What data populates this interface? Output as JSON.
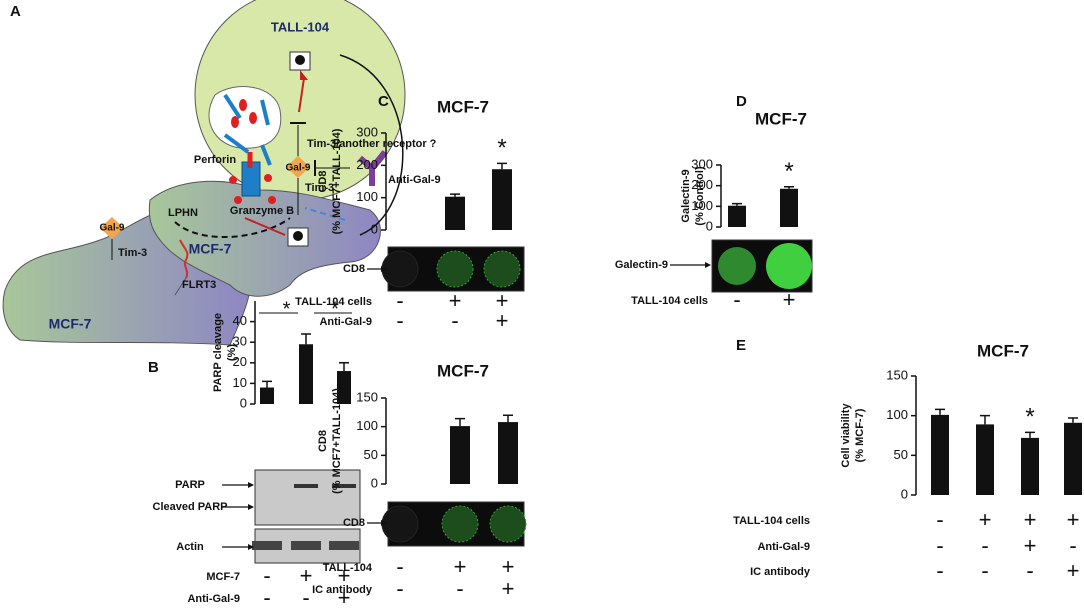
{
  "panel_labels": [
    "A",
    "B",
    "C",
    "D",
    "E"
  ],
  "diagram": {
    "labels": [
      "TALL-104",
      "Perforin",
      "Gal-9",
      "Tim-3/another receptor ?",
      "Anti-Gal-9",
      "Tim-3",
      "Granzyme B",
      "LPHN",
      "MCF-7",
      "Gal-9",
      "Tim-3",
      "FLRT3",
      "MCF-7"
    ]
  },
  "chart_data": [
    {
      "type": "bar",
      "ylabel": [
        "PARP cleavage",
        "(%)"
      ],
      "values": [
        8,
        29,
        16
      ],
      "errors": [
        3,
        5,
        4
      ],
      "color": "#111111",
      "ylim": [
        0,
        50
      ],
      "yticks": [
        0,
        10,
        20,
        30,
        40
      ],
      "comparison_labels": [
        "*",
        "*"
      ],
      "blot_labels": [
        "PARP",
        "Cleaved PARP",
        "Actin"
      ],
      "conditions": [
        {
          "name": "MCF-7",
          "values": [
            "-",
            "+",
            "+"
          ]
        },
        {
          "name": "Anti-Gal-9",
          "values": [
            "-",
            "-",
            "+"
          ]
        }
      ]
    },
    {
      "type": "bar",
      "title": "MCF-7",
      "ylabel": [
        "CD8",
        "(% MCF7+TALL-104)"
      ],
      "values": [
        0,
        103,
        188
      ],
      "errors": [
        0,
        8,
        18
      ],
      "color": "#111111",
      "ylim": [
        0,
        300
      ],
      "yticks": [
        0,
        100,
        200,
        300
      ],
      "significance": [
        null,
        null,
        "*"
      ],
      "blot_labels": [
        "CD8"
      ],
      "conditions": [
        {
          "name": "TALL-104 cells",
          "values": [
            "-",
            "+",
            "+"
          ]
        },
        {
          "name": "Anti-Gal-9",
          "values": [
            "-",
            "-",
            "+"
          ]
        }
      ]
    },
    {
      "type": "bar",
      "title": "MCF-7",
      "ylabel": [
        "CD8",
        "(% MCF7+TALL-104)"
      ],
      "values": [
        0,
        101,
        108
      ],
      "errors": [
        0,
        13,
        12
      ],
      "color": "#111111",
      "ylim": [
        0,
        150
      ],
      "yticks": [
        0,
        50,
        100,
        150
      ],
      "blot_labels": [
        "CD8"
      ],
      "conditions": [
        {
          "name": "TALL-104",
          "values": [
            "-",
            "+",
            "+"
          ]
        },
        {
          "name": "IC antibody",
          "values": [
            "-",
            "-",
            "+"
          ]
        }
      ]
    },
    {
      "type": "bar",
      "title": "MCF-7",
      "ylabel": [
        "Galectin-9",
        "(% Control)"
      ],
      "values": [
        103,
        185
      ],
      "errors": [
        10,
        10
      ],
      "color": "#111111",
      "ylim": [
        0,
        300
      ],
      "yticks": [
        0,
        100,
        200,
        300
      ],
      "significance": [
        null,
        "*"
      ],
      "blot_labels": [
        "Galectin-9"
      ],
      "conditions": [
        {
          "name": "TALL-104 cells",
          "values": [
            "-",
            "+"
          ]
        }
      ]
    },
    {
      "type": "bar",
      "title": "MCF-7",
      "ylabel": [
        "Cell viability",
        "(% MCF-7)"
      ],
      "values": [
        101,
        89,
        72,
        91
      ],
      "errors": [
        7,
        11,
        7,
        6
      ],
      "color": "#111111",
      "ylim": [
        0,
        150
      ],
      "yticks": [
        0,
        50,
        100,
        150
      ],
      "significance": [
        null,
        null,
        "*",
        null
      ],
      "conditions": [
        {
          "name": "TALL-104 cells",
          "values": [
            "-",
            "+",
            "+",
            "+"
          ]
        },
        {
          "name": "Anti-Gal-9",
          "values": [
            "-",
            "-",
            "+",
            "-"
          ]
        },
        {
          "name": "IC antibody",
          "values": [
            "-",
            "-",
            "-",
            "+"
          ]
        }
      ]
    }
  ]
}
